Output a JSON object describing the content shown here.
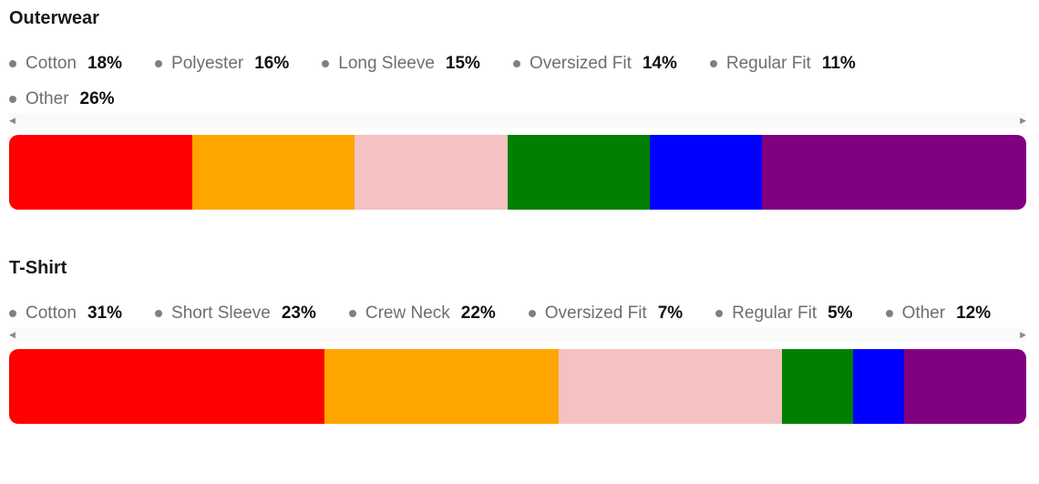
{
  "chart_data": [
    {
      "type": "bar",
      "orientation": "horizontal-stacked-100",
      "title": "Outerwear",
      "categories": [
        "Cotton",
        "Polyester",
        "Long Sleeve",
        "Oversized Fit",
        "Regular Fit",
        "Other"
      ],
      "values": [
        18,
        16,
        15,
        14,
        11,
        26
      ],
      "value_labels": [
        "18%",
        "16%",
        "15%",
        "14%",
        "11%",
        "26%"
      ],
      "colors": [
        "#ff0000",
        "#ffa500",
        "#f4c2c2",
        "#008000",
        "#0000ff",
        "#800080"
      ],
      "unit": "%",
      "legend_position": "top"
    },
    {
      "type": "bar",
      "orientation": "horizontal-stacked-100",
      "title": "T-Shirt",
      "categories": [
        "Cotton",
        "Short Sleeve",
        "Crew Neck",
        "Oversized Fit",
        "Regular Fit",
        "Other"
      ],
      "values": [
        31,
        23,
        22,
        7,
        5,
        12
      ],
      "value_labels": [
        "31%",
        "23%",
        "22%",
        "7%",
        "5%",
        "12%"
      ],
      "colors": [
        "#ff0000",
        "#ffa500",
        "#f4c2c2",
        "#008000",
        "#0000ff",
        "#800080"
      ],
      "unit": "%",
      "legend_position": "top"
    }
  ],
  "icons": {
    "scroll_left": "scroll-left-arrow-icon",
    "scroll_right": "scroll-right-arrow-icon"
  }
}
